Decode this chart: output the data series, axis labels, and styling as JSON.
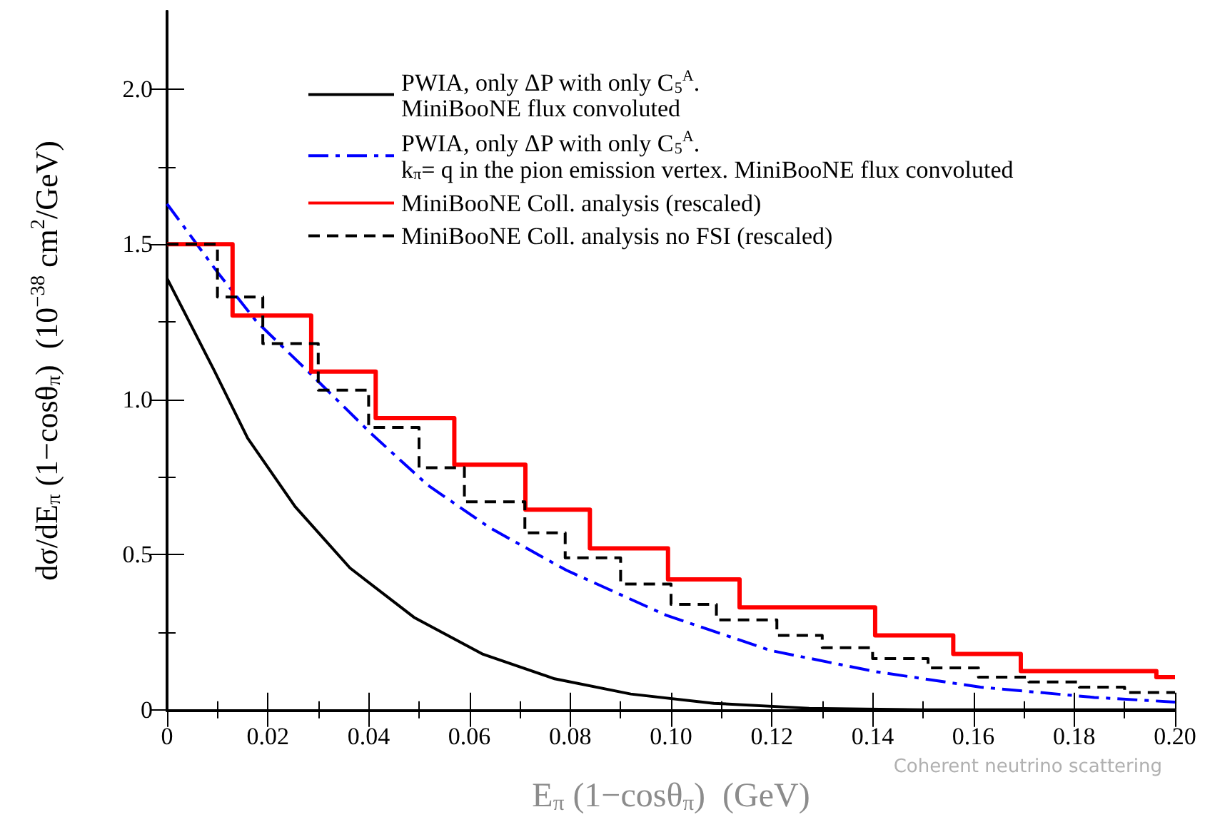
{
  "chart_data": {
    "type": "line",
    "xlabel": "E$_{π}$ (1−cosθ$_{π}$)  (GeV)",
    "ylabel": "dσ/dE$_{π}$ (1−cosθ$_{π}$)  (10$^{−38}$ cm$^{2}$/GeV)",
    "xlim": [
      0,
      0.2
    ],
    "xticks": [
      {
        "value": 0,
        "label": "0"
      },
      0.02,
      0.04,
      0.06,
      0.08,
      {
        "value": 0.1,
        "label": "0.10"
      },
      0.12,
      0.14,
      0.16,
      0.18,
      {
        "value": 0.2,
        "label": "0.20"
      }
    ],
    "ylim": [
      0,
      2.25
    ],
    "yticks": [
      {
        "value": 0,
        "label": "0"
      },
      0.5,
      {
        "value": 1,
        "label": "1.0"
      },
      1.5,
      {
        "value": 2,
        "label": "2.0"
      }
    ],
    "grid": false,
    "legend": "top",
    "marker": "none",
    "annotations": [
      "Coherent neutrino scattering"
    ],
    "series": [
      {
        "name": "PWIA, only ΔP with only C$_{5}$$^{A}$.\nMiniBooNE flux convoluted",
        "color": "#000000",
        "line_style": "solid",
        "x": [
          0,
          0.0093,
          0.016,
          0.0254,
          0.0363,
          0.049,
          0.0627,
          0.0769,
          0.092,
          0.1085,
          0.1274,
          0.15,
          0.2
        ],
        "values": [
          1.39,
          1.095,
          0.875,
          0.655,
          0.457,
          0.298,
          0.179,
          0.1,
          0.051,
          0.021,
          0.005,
          0,
          0
        ]
      },
      {
        "name": "PWIA, only ΔP with only C$_{5}$$^{A}$.\nk$_{π}$= q in the pion emission vertex. MiniBooNE flux convoluted",
        "color": "#0000ff",
        "line_style": "dashdot",
        "x": [
          0,
          0.01,
          0.0178,
          0.028,
          0.0405,
          0.0518,
          0.0641,
          0.0792,
          0.099,
          0.1198,
          0.1406,
          0.1614,
          0.184,
          0.2
        ],
        "values": [
          1.63,
          1.41,
          1.25,
          1.09,
          0.89,
          0.723,
          0.586,
          0.45,
          0.305,
          0.191,
          0.123,
          0.073,
          0.04,
          0.025
        ]
      },
      {
        "name": "MiniBooNE Coll. analysis (rescaled)",
        "color": "#ff0000",
        "type": "step",
        "line_style": "solid",
        "x": [
          0,
          0.013,
          0.0286,
          0.0414,
          0.057,
          0.0711,
          0.0839,
          0.0994,
          0.1136,
          0.1405,
          0.156,
          0.1694,
          0.1963,
          0.2
        ],
        "values": [
          1.5,
          1.27,
          1.09,
          0.94,
          0.79,
          0.645,
          0.52,
          0.42,
          0.33,
          0.24,
          0.18,
          0.125,
          0.105,
          0.105
        ]
      },
      {
        "name": "MiniBooNE Coll. analysis no FSI (rescaled)",
        "color": "#000000",
        "type": "step",
        "line_style": "dashed",
        "x": [
          0,
          0.01,
          0.019,
          0.03,
          0.04,
          0.05,
          0.059,
          0.071,
          0.079,
          0.09,
          0.1,
          0.109,
          0.121,
          0.13,
          0.14,
          0.151,
          0.161,
          0.171,
          0.181,
          0.19,
          0.2
        ],
        "values": [
          1.5,
          1.33,
          1.18,
          1.03,
          0.91,
          0.78,
          0.67,
          0.57,
          0.49,
          0.405,
          0.34,
          0.29,
          0.24,
          0.2,
          0.165,
          0.135,
          0.105,
          0.09,
          0.073,
          0.056,
          0.056
        ]
      }
    ]
  }
}
